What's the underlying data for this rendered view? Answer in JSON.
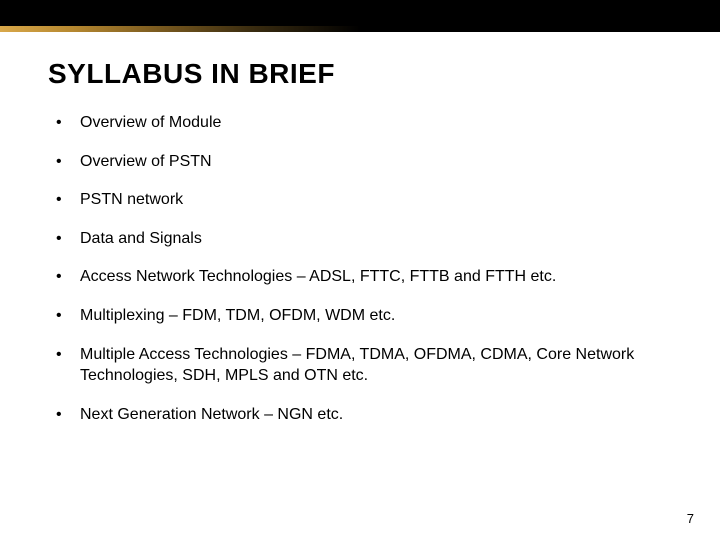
{
  "slide": {
    "title": "SYLLABUS IN BRIEF",
    "bullets": [
      "Overview of Module",
      "Overview of PSTN",
      "PSTN network",
      "Data and Signals",
      "Access Network Technologies – ADSL, FTTC, FTTB and FTTH etc.",
      "Multiplexing – FDM, TDM, OFDM, WDM etc.",
      "Multiple Access Technologies – FDMA, TDMA, OFDMA, CDMA, Core Network Technologies, SDH, MPLS and OTN etc.",
      "Next Generation Network – NGN etc."
    ],
    "page_number": "7"
  },
  "style": {
    "background_color": "#000000",
    "content_background": "#ffffff",
    "title_fontsize": 28,
    "title_color": "#000000",
    "bullet_fontsize": 16,
    "bullet_color": "#000000",
    "page_number_fontsize": 13,
    "gradient_colors": [
      "#d9a84a",
      "#b68830",
      "#7a5a1f",
      "#3a2c10",
      "#000000"
    ]
  }
}
